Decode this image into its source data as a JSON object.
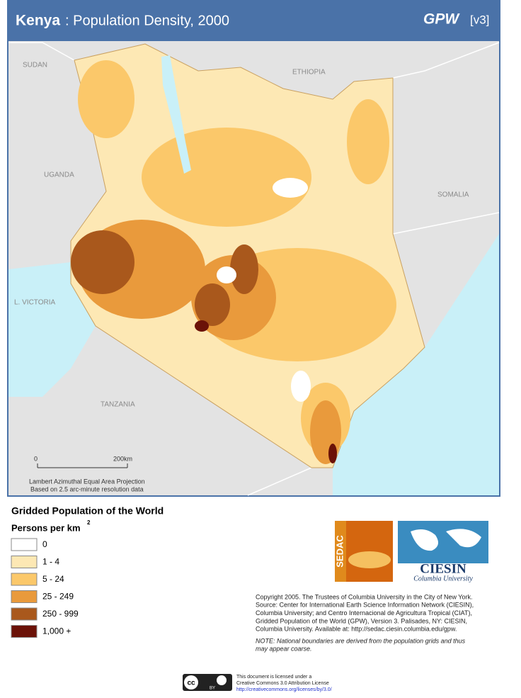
{
  "header": {
    "country": "Kenya",
    "title": ": Population Density, 2000",
    "brand": "GPW",
    "version": "[v3]"
  },
  "map": {
    "labels": [
      "SUDAN",
      "ETHIOPIA",
      "UGANDA",
      "SOMALIA",
      "L. VICTORIA",
      "TANZANIA"
    ],
    "scale": {
      "start": "0",
      "end": "200km"
    },
    "projection": "Lambert Azimuthal Equal Area Projection",
    "resolution": "Based on 2.5 arc-minute resolution data"
  },
  "legend": {
    "title": "Gridded Population of the World",
    "unit": "Persons per km",
    "unit_power": "2",
    "items": [
      {
        "label": "0",
        "color": "#ffffff"
      },
      {
        "label": "1 - 4",
        "color": "#fde8b4"
      },
      {
        "label": "5 - 24",
        "color": "#fbc86a"
      },
      {
        "label": "25 - 249",
        "color": "#e99a3c"
      },
      {
        "label": "250 - 999",
        "color": "#a9581c"
      },
      {
        "label": "1,000 +",
        "color": "#6b1208"
      }
    ]
  },
  "logos": {
    "sedac": "SEDAC",
    "ciesin": "CIESIN",
    "university": "Columbia University"
  },
  "copyright": [
    "Copyright 2005. The Trustees of Columbia University in the City of New York.",
    "Source: Center for International Earth Science Information Network (CIESIN),",
    "Columbia University; and Centro Internacional de Agricultura Tropical (CIAT),",
    "Gridded Population of the World (GPW),  Version 3.  Palisades, NY: CIESIN,",
    "Columbia University.   Available at:    http://sedac.ciesin.columbia.edu/gpw."
  ],
  "note": [
    "NOTE: National boundaries are derived from the population grids and thus",
    "may appear coarse."
  ],
  "license": {
    "badge": "cc",
    "badge_by": "BY",
    "lines": [
      "This document is licensed under a",
      "Creative Commons 3.0 Attribution License",
      "http://creativecommons.org/licenses/by/3.0/"
    ]
  }
}
